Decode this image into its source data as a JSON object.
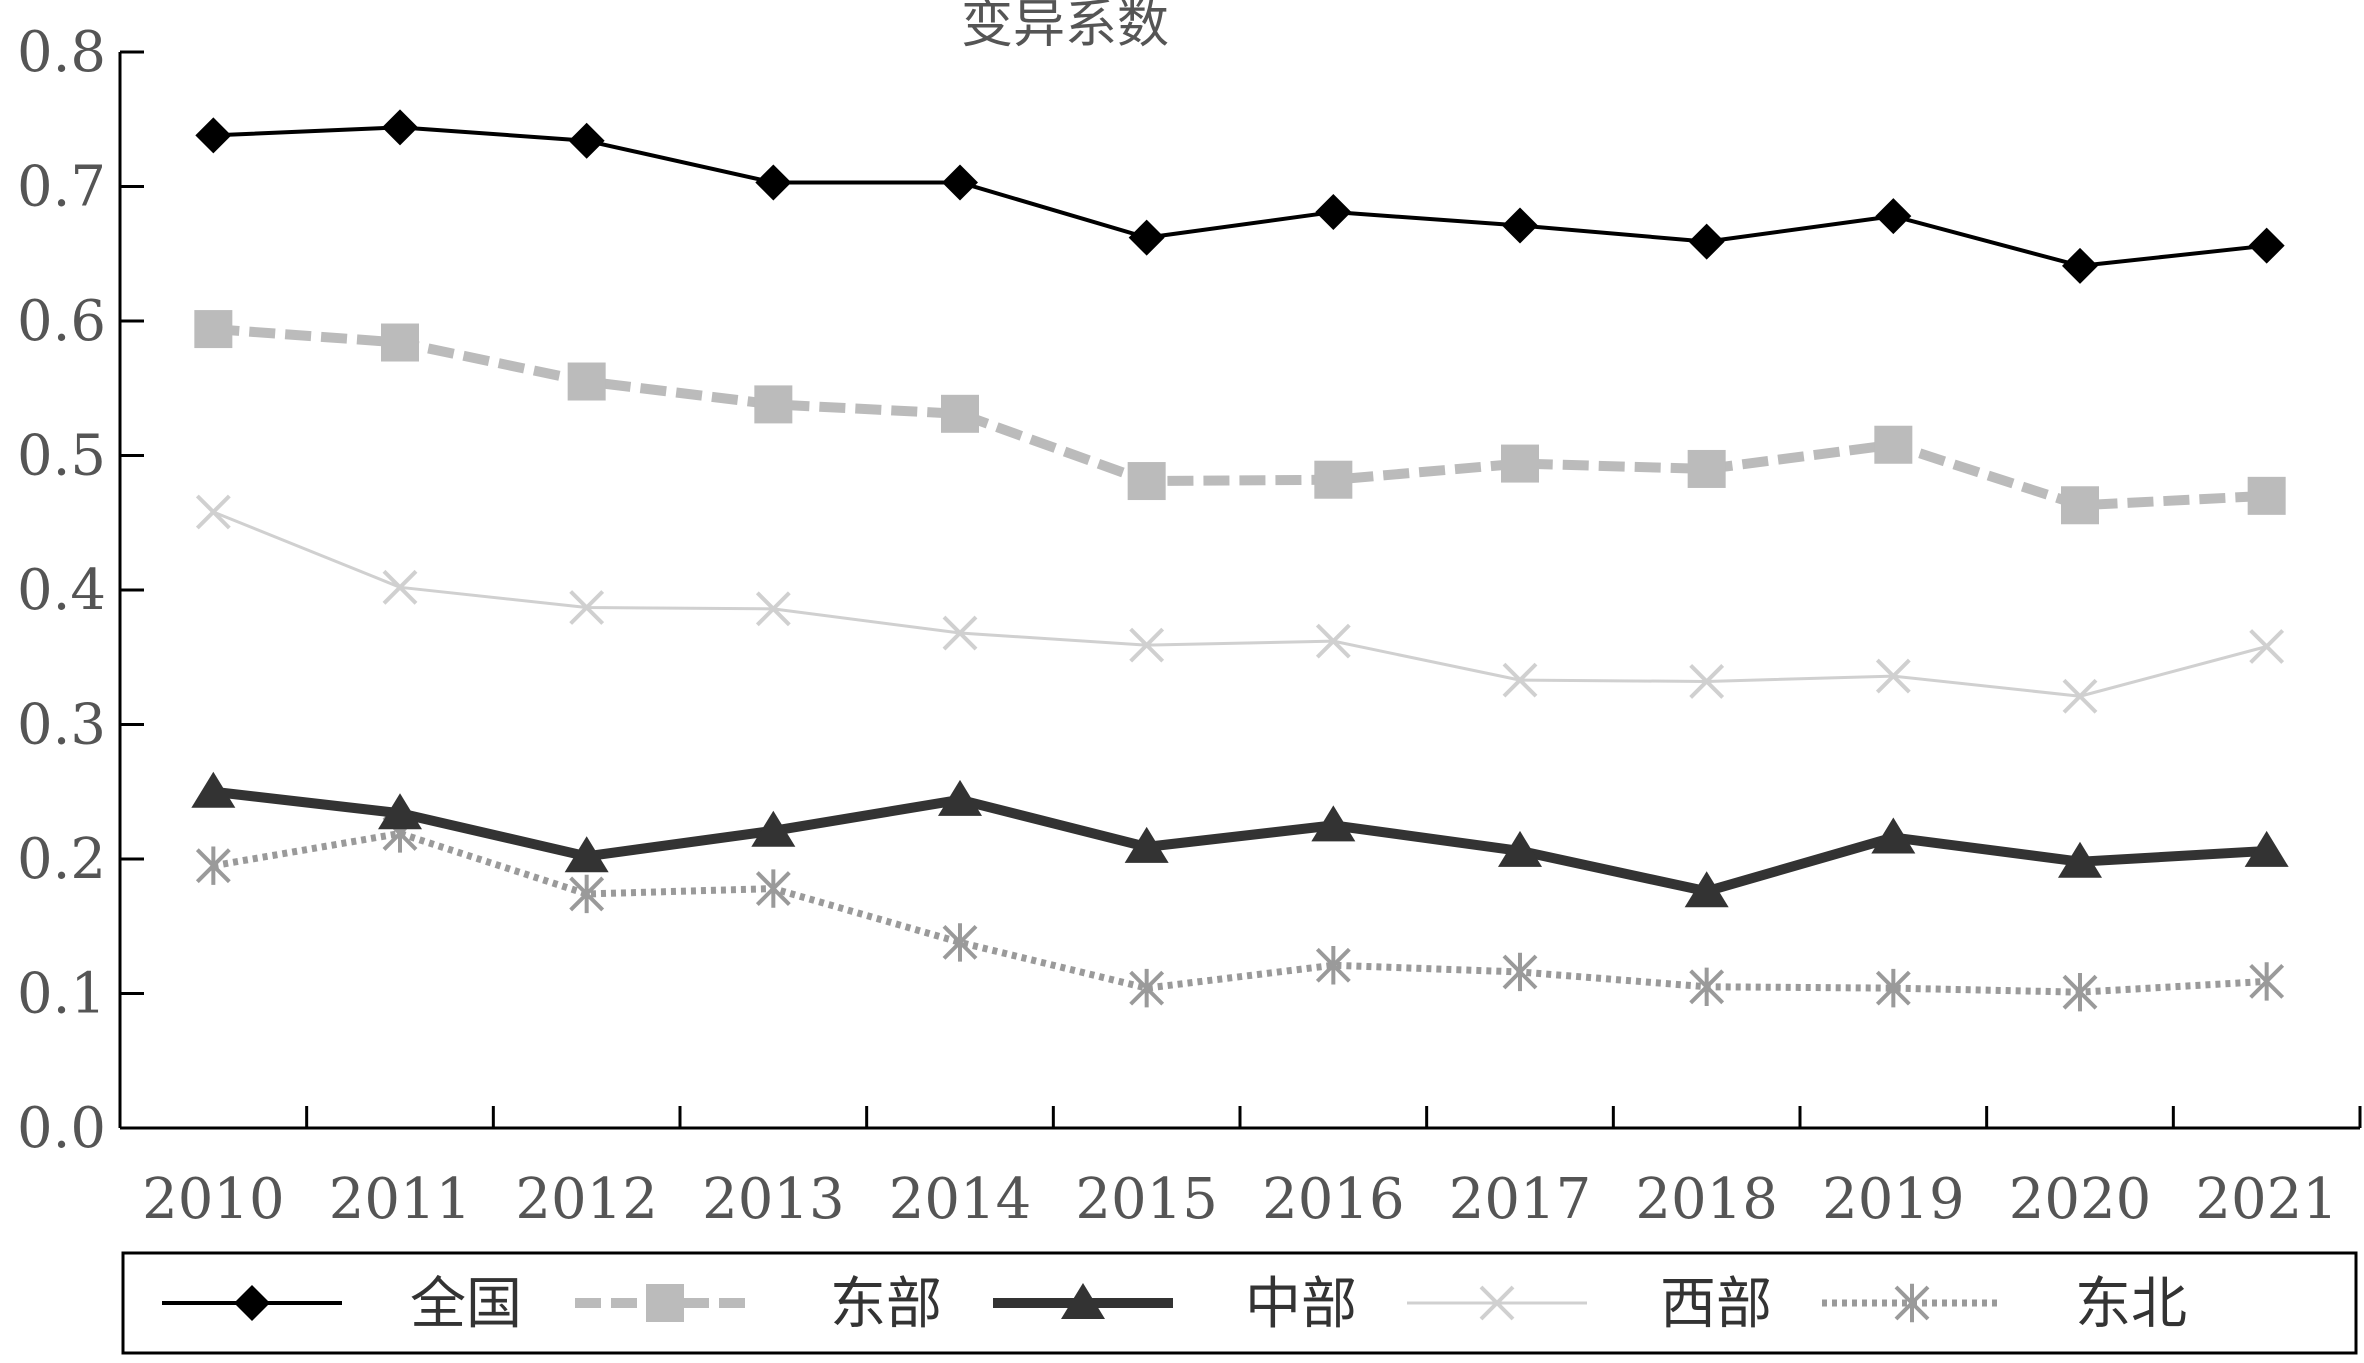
{
  "chart_data": {
    "type": "line",
    "title": "",
    "ylabel": "变异系数",
    "xlabel": "",
    "categories": [
      "2010",
      "2011",
      "2012",
      "2013",
      "2014",
      "2015",
      "2016",
      "2017",
      "2018",
      "2019",
      "2020",
      "2021"
    ],
    "ylim": [
      0,
      0.8
    ],
    "yticks": [
      "0.0",
      "0.1",
      "0.2",
      "0.3",
      "0.4",
      "0.5",
      "0.6",
      "0.7",
      "0.8"
    ],
    "grid": false,
    "legend_position": "bottom",
    "series": [
      {
        "name": "全国",
        "values": [
          0.738,
          0.744,
          0.734,
          0.703,
          0.703,
          0.662,
          0.681,
          0.671,
          0.659,
          0.678,
          0.641,
          0.656
        ],
        "color": "#000000",
        "marker": "diamond",
        "line": "solid"
      },
      {
        "name": "东部",
        "values": [
          0.594,
          0.584,
          0.555,
          0.538,
          0.531,
          0.481,
          0.482,
          0.494,
          0.49,
          0.508,
          0.463,
          0.47
        ],
        "color": "#bbbbbb",
        "marker": "square",
        "line": "dashed"
      },
      {
        "name": "中部",
        "values": [
          0.25,
          0.234,
          0.202,
          0.221,
          0.244,
          0.209,
          0.225,
          0.206,
          0.176,
          0.216,
          0.198,
          0.206
        ],
        "color": "#333333",
        "marker": "triangle",
        "line": "solid-thick"
      },
      {
        "name": "西部",
        "values": [
          0.458,
          0.402,
          0.387,
          0.386,
          0.368,
          0.359,
          0.362,
          0.333,
          0.332,
          0.336,
          0.321,
          0.358
        ],
        "color": "#d0d0d0",
        "marker": "x",
        "line": "solid-thin"
      },
      {
        "name": "东北",
        "values": [
          0.195,
          0.219,
          0.174,
          0.178,
          0.138,
          0.104,
          0.121,
          0.116,
          0.105,
          0.104,
          0.101,
          0.109
        ],
        "color": "#9a9a9a",
        "marker": "star",
        "line": "dotted"
      }
    ]
  }
}
